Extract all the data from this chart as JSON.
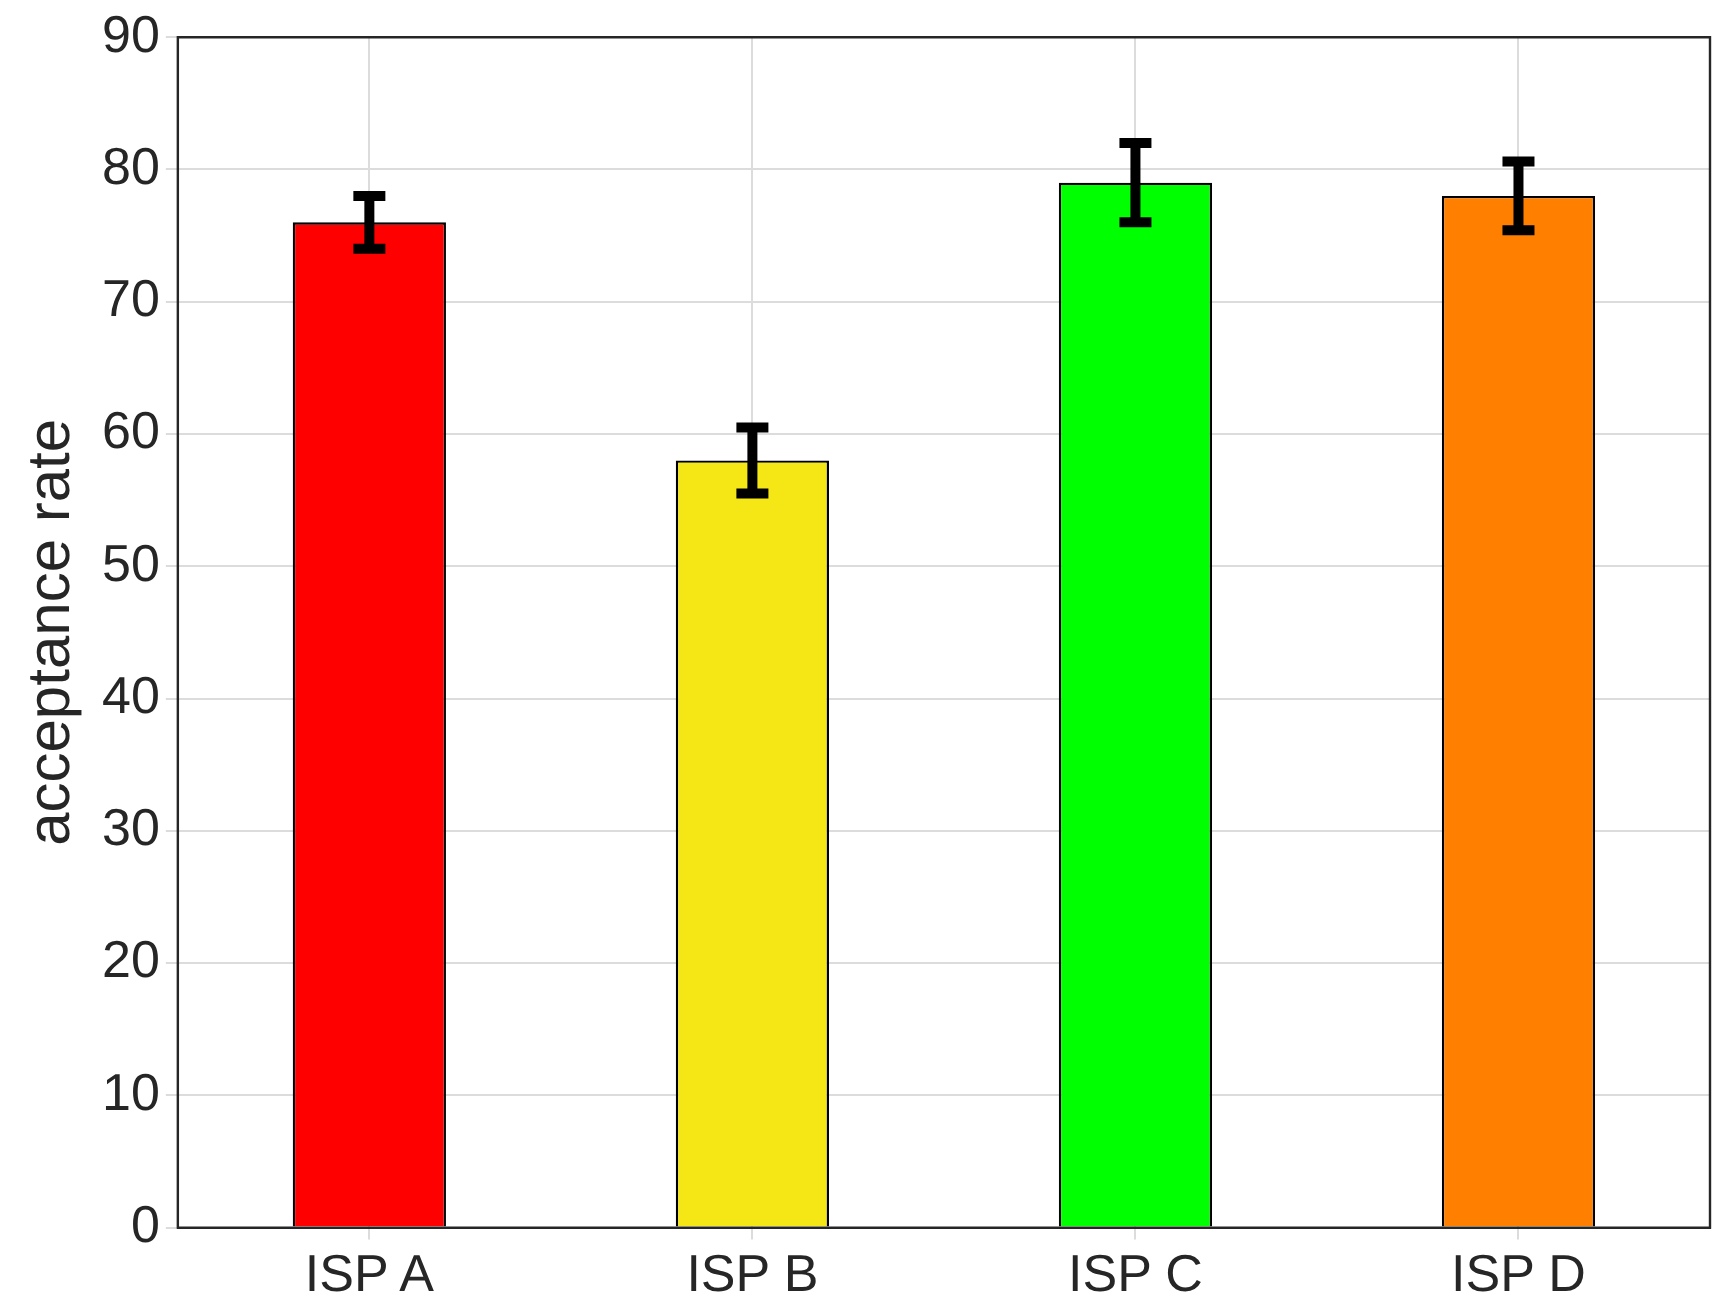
{
  "chart_data": {
    "type": "bar",
    "ylabel": "acceptance rate",
    "categories": [
      "ISP A",
      "ISP B",
      "ISP C",
      "ISP D"
    ],
    "values": [
      76,
      58,
      79,
      78
    ],
    "colors": [
      "#ff0000",
      "#f5e615",
      "#00ff00",
      "#ff7f00"
    ],
    "errors": [
      2,
      2.5,
      3,
      2.6
    ],
    "ylim": [
      0,
      90
    ],
    "yticks": [
      0,
      10,
      20,
      30,
      40,
      50,
      60,
      70,
      80,
      90
    ],
    "grid": true
  }
}
